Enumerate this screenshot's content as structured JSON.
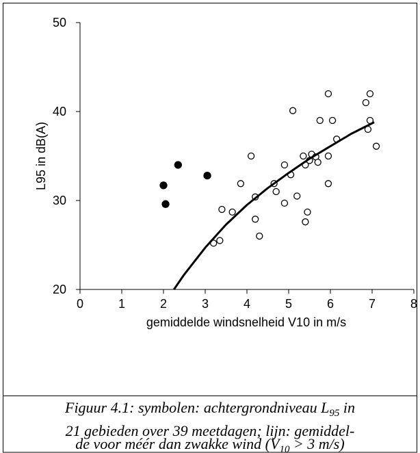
{
  "chart_data": {
    "type": "scatter",
    "xlabel": "gemiddelde windsnelheid V10 in m/s",
    "ylabel": "L95 in dB(A)",
    "xlim": [
      0,
      8
    ],
    "ylim": [
      20,
      50
    ],
    "xticks": [
      0,
      1,
      2,
      3,
      4,
      5,
      6,
      7,
      8
    ],
    "yticks": [
      20,
      30,
      40,
      50
    ],
    "series": [
      {
        "type": "scatter",
        "marker": "filled",
        "color": "#000000",
        "x": [
          2.0,
          2.05,
          2.35,
          3.05
        ],
        "values": [
          31.7,
          29.6,
          34.0,
          32.8
        ]
      },
      {
        "type": "scatter",
        "marker": "open",
        "color": "#000000",
        "x": [
          3.2,
          3.35,
          3.4,
          3.65,
          3.85,
          4.1,
          4.2,
          4.2,
          4.3,
          4.65,
          4.7,
          4.9,
          4.9,
          5.05,
          5.1,
          5.2,
          5.35,
          5.4,
          5.4,
          5.45,
          5.5,
          5.55,
          5.65,
          5.7,
          5.75,
          5.95,
          5.95,
          5.95,
          6.05,
          6.15,
          6.85,
          6.9,
          6.95,
          6.95,
          7.1
        ],
        "values": [
          25.2,
          25.5,
          29.0,
          28.7,
          31.9,
          35.0,
          30.4,
          27.9,
          26.0,
          31.9,
          31.0,
          34.0,
          29.7,
          32.9,
          40.1,
          30.5,
          35.0,
          34.0,
          27.6,
          28.7,
          34.5,
          35.2,
          34.9,
          34.3,
          39.0,
          42.0,
          35.0,
          31.9,
          39.0,
          36.9,
          41.0,
          38.0,
          42.0,
          39.0,
          36.1
        ]
      },
      {
        "type": "line",
        "color": "#000000",
        "x": [
          2.25,
          2.5,
          3,
          3.5,
          4,
          4.5,
          5,
          5.5,
          6,
          6.5,
          7.05
        ],
        "values": [
          20,
          21.7,
          24.7,
          27.3,
          29.5,
          31.4,
          33.1,
          34.7,
          36.1,
          37.5,
          38.8
        ]
      }
    ]
  },
  "caption_lines": [
    [
      "Figuur 4.1:  symbolen: achtergrondniveau L",
      "95",
      " in"
    ],
    [
      "21 gebieden over 39  meetdagen; lijn: gemiddel-"
    ],
    [
      "de voor méér dan zwakke wind (V",
      "10",
      " > 3 m/s)"
    ]
  ]
}
